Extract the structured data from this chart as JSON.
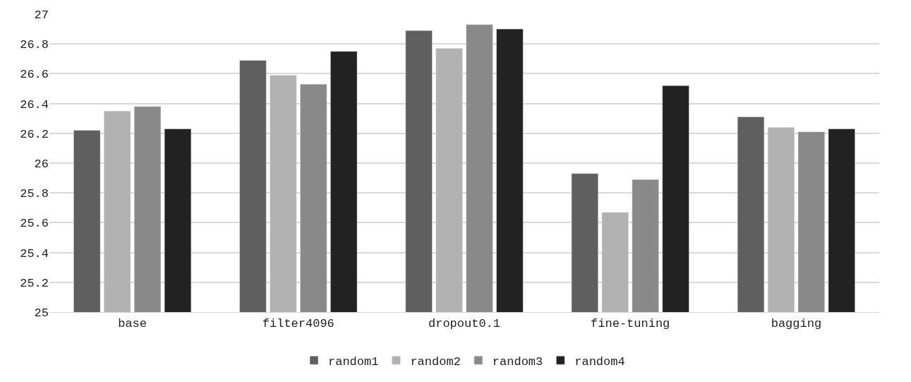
{
  "chart_data": {
    "type": "bar",
    "categories": [
      "base",
      "filter4096",
      "dropout0.1",
      "fine-tuning",
      "bagging"
    ],
    "series": [
      {
        "name": "random1",
        "color": "#5f5f5f",
        "values": [
          26.22,
          26.69,
          26.89,
          25.93,
          26.31
        ]
      },
      {
        "name": "random2",
        "color": "#b2b2b2",
        "values": [
          26.35,
          26.59,
          26.77,
          25.67,
          26.24
        ]
      },
      {
        "name": "random3",
        "color": "#898989",
        "values": [
          26.38,
          26.53,
          26.93,
          25.89,
          26.21
        ]
      },
      {
        "name": "random4",
        "color": "#222222",
        "values": [
          26.23,
          26.75,
          26.9,
          26.52,
          26.23
        ]
      }
    ],
    "ylim": [
      25,
      27
    ],
    "yticks": [
      25,
      25.2,
      25.4,
      25.6,
      25.8,
      26,
      26.2,
      26.4,
      26.6,
      26.8,
      27
    ],
    "grid": "y",
    "legend": "bottom"
  }
}
